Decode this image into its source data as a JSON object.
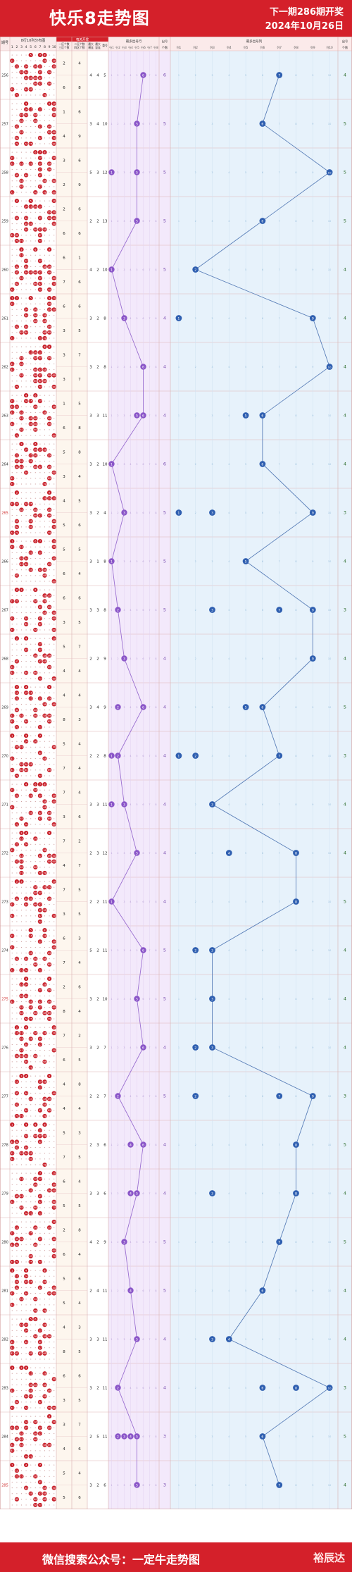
{
  "header": {
    "title": "快乐8走势图",
    "next_draw": "下一期286期开奖",
    "date": "2024年10月26日"
  },
  "footer": {
    "text": "微信搜索公众号：一定牛走势图",
    "brand": "裕辰达"
  },
  "table_header": {
    "issue": "期号",
    "grid_title": "8行10列分布图",
    "ratio_title": "每关开奖",
    "split1": "一区个数\n三区个数",
    "split2": "二区个数\n四区个数",
    "max_row_group": "最大\n横连",
    "max_col_group": "最大\n竖连",
    "repeat_count": "重号",
    "left_title": "最多出号行",
    "left_count": "个数",
    "right_title": "最多出号列",
    "right_count": "个数"
  },
  "colors": {
    "banner": "#d4202a",
    "red_ball": "#c8202a",
    "left_bg": "#f3e9fb",
    "left_line": "#9b6fd0",
    "left_ball": "#8a55c8",
    "right_bg": "#e7f2fb",
    "right_line": "#5a7fb8",
    "right_ball": "#2f5fb0",
    "left_count_text": "#7a4fb0",
    "right_count_text": "#2f6f2f"
  },
  "chart_data": {
    "type": "table",
    "x_label": "期号",
    "grid_columns": [
      "1",
      "2",
      "3",
      "4",
      "5",
      "6",
      "7",
      "8",
      "9",
      "10"
    ],
    "left_axis_labels": [
      "行1",
      "行2",
      "行3",
      "行4",
      "行5",
      "行6",
      "行7",
      "行8"
    ],
    "right_axis_labels": [
      "列1",
      "列2",
      "列3",
      "列4",
      "列5",
      "列6",
      "列7",
      "列8",
      "列9",
      "列10"
    ],
    "rows": [
      {
        "issue": "256",
        "q": [
          2,
          4,
          6,
          8
        ],
        "s": [
          4,
          4,
          5
        ],
        "mr": [
          6
        ],
        "mrc": 6,
        "mc": [
          7
        ],
        "mcc": 4
      },
      {
        "issue": "257",
        "q": [
          1,
          6,
          4,
          9
        ],
        "s": [
          3,
          4,
          10
        ],
        "mr": [
          5
        ],
        "mrc": 5,
        "mc": [
          6
        ],
        "mcc": 5
      },
      {
        "issue": "258",
        "q": [
          3,
          6,
          2,
          9
        ],
        "s": [
          5,
          3,
          12
        ],
        "mr": [
          1,
          5
        ],
        "mrc": 5,
        "mc": [
          10
        ],
        "mcc": 5
      },
      {
        "issue": "259",
        "q": [
          2,
          6,
          6,
          6
        ],
        "s": [
          2,
          2,
          13
        ],
        "mr": [
          5
        ],
        "mrc": 5,
        "mc": [
          6
        ],
        "mcc": 5
      },
      {
        "issue": "260",
        "q": [
          6,
          1,
          7,
          6
        ],
        "s": [
          4,
          2,
          10
        ],
        "mr": [
          1
        ],
        "mrc": 5,
        "mc": [
          2
        ],
        "mcc": 4
      },
      {
        "issue": "261",
        "q": [
          6,
          6,
          3,
          5
        ],
        "s": [
          3,
          2,
          8
        ],
        "mr": [
          3
        ],
        "mrc": 4,
        "mc": [
          1,
          9
        ],
        "mcc": 4
      },
      {
        "issue": "262",
        "q": [
          3,
          7,
          3,
          7
        ],
        "s": [
          3,
          2,
          8
        ],
        "mr": [
          6
        ],
        "mrc": 4,
        "mc": [
          10
        ],
        "mcc": 4
      },
      {
        "issue": "263",
        "q": [
          1,
          5,
          6,
          8
        ],
        "s": [
          3,
          3,
          11
        ],
        "mr": [
          5,
          6
        ],
        "mrc": 4,
        "mc": [
          5,
          6
        ],
        "mcc": 4
      },
      {
        "issue": "264",
        "q": [
          5,
          8,
          3,
          4
        ],
        "s": [
          3,
          2,
          10
        ],
        "mr": [
          1
        ],
        "mrc": 6,
        "mc": [
          6
        ],
        "mcc": 4
      },
      {
        "issue": "265",
        "q": [
          4,
          5,
          5,
          6
        ],
        "s": [
          3,
          2,
          4
        ],
        "mr": [
          3
        ],
        "mrc": 5,
        "mc": [
          1,
          3,
          9
        ],
        "mcc": 3
      },
      {
        "issue": "266",
        "q": [
          5,
          5,
          6,
          4
        ],
        "s": [
          3,
          1,
          8
        ],
        "mr": [
          1
        ],
        "mrc": 5,
        "mc": [
          5
        ],
        "mcc": 4
      },
      {
        "issue": "267",
        "q": [
          6,
          6,
          3,
          5
        ],
        "s": [
          3,
          3,
          8
        ],
        "mr": [
          2
        ],
        "mrc": 5,
        "mc": [
          3,
          7,
          9
        ],
        "mcc": 3
      },
      {
        "issue": "268",
        "q": [
          5,
          7,
          4,
          4
        ],
        "s": [
          2,
          2,
          9
        ],
        "mr": [
          3
        ],
        "mrc": 4,
        "mc": [
          9
        ],
        "mcc": 4
      },
      {
        "issue": "269",
        "q": [
          4,
          4,
          8,
          3
        ],
        "s": [
          3,
          4,
          9
        ],
        "mr": [
          2,
          6
        ],
        "mrc": 4,
        "mc": [
          5,
          6
        ],
        "mcc": 5
      },
      {
        "issue": "270",
        "q": [
          5,
          4,
          7,
          4
        ],
        "s": [
          2,
          2,
          8
        ],
        "mr": [
          1,
          2
        ],
        "mrc": 4,
        "mc": [
          1,
          2,
          7
        ],
        "mcc": 3
      },
      {
        "issue": "271",
        "q": [
          7,
          4,
          3,
          6
        ],
        "s": [
          3,
          3,
          11
        ],
        "mr": [
          1,
          3
        ],
        "mrc": 4,
        "mc": [
          3
        ],
        "mcc": 4
      },
      {
        "issue": "272",
        "q": [
          7,
          2,
          4,
          7
        ],
        "s": [
          2,
          3,
          12
        ],
        "mr": [
          5
        ],
        "mrc": 4,
        "mc": [
          4,
          8
        ],
        "mcc": 4
      },
      {
        "issue": "273",
        "q": [
          7,
          5,
          3,
          5
        ],
        "s": [
          2,
          2,
          11
        ],
        "mr": [
          1
        ],
        "mrc": 4,
        "mc": [
          8
        ],
        "mcc": 5
      },
      {
        "issue": "274",
        "q": [
          6,
          3,
          7,
          4
        ],
        "s": [
          5,
          2,
          11
        ],
        "mr": [
          6
        ],
        "mrc": 5,
        "mc": [
          2,
          3
        ],
        "mcc": 4
      },
      {
        "issue": "275",
        "q": [
          2,
          6,
          8,
          4
        ],
        "s": [
          3,
          2,
          10
        ],
        "mr": [
          5
        ],
        "mrc": 5,
        "mc": [
          3
        ],
        "mcc": 4
      },
      {
        "issue": "276",
        "q": [
          7,
          2,
          6,
          5
        ],
        "s": [
          3,
          2,
          7
        ],
        "mr": [
          6
        ],
        "mrc": 4,
        "mc": [
          2,
          3
        ],
        "mcc": 4
      },
      {
        "issue": "277",
        "q": [
          4,
          8,
          4,
          4
        ],
        "s": [
          2,
          2,
          7
        ],
        "mr": [
          2
        ],
        "mrc": 5,
        "mc": [
          2,
          7,
          9
        ],
        "mcc": 3
      },
      {
        "issue": "278",
        "q": [
          5,
          3,
          7,
          5
        ],
        "s": [
          2,
          3,
          6
        ],
        "mr": [
          4,
          6
        ],
        "mrc": 4,
        "mc": [
          8
        ],
        "mcc": 5
      },
      {
        "issue": "279",
        "q": [
          6,
          4,
          5,
          5
        ],
        "s": [
          3,
          3,
          6
        ],
        "mr": [
          4,
          5
        ],
        "mrc": 4,
        "mc": [
          3,
          8
        ],
        "mcc": 4
      },
      {
        "issue": "280",
        "q": [
          2,
          8,
          6,
          4
        ],
        "s": [
          4,
          2,
          9
        ],
        "mr": [
          3
        ],
        "mrc": 5,
        "mc": [
          7
        ],
        "mcc": 5
      },
      {
        "issue": "281",
        "q": [
          5,
          6,
          5,
          4
        ],
        "s": [
          2,
          4,
          11
        ],
        "mr": [
          4
        ],
        "mrc": 5,
        "mc": [
          6
        ],
        "mcc": 4
      },
      {
        "issue": "282",
        "q": [
          4,
          3,
          8,
          5
        ],
        "s": [
          3,
          3,
          11
        ],
        "mr": [
          5
        ],
        "mrc": 4,
        "mc": [
          3,
          4
        ],
        "mcc": 4
      },
      {
        "issue": "283",
        "q": [
          6,
          6,
          3,
          5
        ],
        "s": [
          3,
          2,
          11
        ],
        "mr": [
          2
        ],
        "mrc": 4,
        "mc": [
          6,
          8,
          10
        ],
        "mcc": 3
      },
      {
        "issue": "284",
        "q": [
          3,
          7,
          4,
          6
        ],
        "s": [
          2,
          5,
          11
        ],
        "mr": [
          2,
          3,
          4,
          5
        ],
        "mrc": 3,
        "mc": [
          6
        ],
        "mcc": 5
      },
      {
        "issue": "285",
        "q": [
          5,
          4,
          5,
          6
        ],
        "s": [
          3,
          2,
          6
        ],
        "mr": [
          5
        ],
        "mrc": 3,
        "mc": [
          7
        ],
        "mcc": 4
      }
    ],
    "grid": [
      "0000101100|1000000101|0101011001|0011001010|0001111000|0000011010|1001100000|0100000100",
      "0001000011|0001101001|0011010001|0010010000|0100001010|0010000011|0100001001|0101100001",
      "0000011100|1000001001|1010101010|0000001010|0101001000|0010000101|0010001000|1000010101",
      "0100100001|0001111000|0000000011|0101001011|0001100001|0001011100|1100001000|0110001000",
      "0010010010|0010000000|0001001000|0101000110|0101111010|0010001001|0100011001|1000001010",
      "1100100011|1000000010|0001010011|0001010100|0000010100|0101000010|0011000110|1000001100",
      "0000000110|0000111000|0010011010|1010000000|1000011100|0010011011|0000011100|0100001001",
      "0001010000|1001101000|1100010001|1010000100|0010110010|1000110010|0010010000|0100000001",
      "0010010000|0001011100|0100110010|0110100000|0110011010|0001000001|1000000010|1000000100",
      "0100000010|0000000111|1101100000|0010010010|0000011010|0100100001|0100100001|1100000010",
      "1000011001|1010000001|0000101000|0011000001|0011000010|0000101100|0100000100|0000000001",
      "0110010000|0000000110|1100010100|0000001010|0000000101|1001001001|0001001000|1000010001",
      "0101000001|0000001000|0001001000|0000010110|0100001100|1000000010|1001010000|0000001001",
      "0101000010|0101100000|0100101010|0000000101|0100010000|1010010110|1001000010|0100001000",
      "1001001000|0001010000|0110000001|0000001000|1000000100|0011100000|1011000010|0100001000",
      "0001011100|1000010000|0100101001|0000000101|1000000100|0000101010|0010001010|0101000001",
      "0011000010|0010010000|0101000000|1000000100|0010001011|0110000011|0010010000|0010001100",
      "0110000001|0000010110|0000011000|0101100010|1001011000|0000001100|1000001001|0000001000",
      "0000100100|1000100100|0000001001|1000000001|0000100010|0101010100|0000010010|1011001000",
      "0001000010|0011000100|0000001010|0011000000|1000101010|0010101001|0010010110|0001100010",
      "0101000001|0110010101|0010101000|0001001000|0010000001|0111010000|0001000100|0000100000",
      "0011000010|0100001100|0000001000|0101000001|0000100110|0100000100|0001001010|0110000100",
      "1001010100|0000001000|0001011100|1100001000|0101000000|1011100000|1000100000|0000000100",
      "0000001001|0010011000|0000010001|0000100011|0110001000|1000001001|0010010001|0001101000",
      "0000000001|0100010010|1000100000|0110001001|1100010000|0000000001|0000100001|1100101000",
      "1001000100|0101000000|0101100100|0100001001|1001000011|0010010000|1000000000|0000010100",
      "0000110000|0011000100|0001001000|0000010110|1001001000|1000001000|1100101100|0000000000",
      "1011000000|0000100100|0000000001|0000110100|1000100010|0001100100|0100001000|1001000011",
      "0000000010|0001010001|1101001010|0010011000|0110010000|1010000110|1000000000|0001100000",
      "1001001000|0100000000|0110010000|0000001000|0001000101|0000101100|0100010101|0000011000"
    ]
  }
}
